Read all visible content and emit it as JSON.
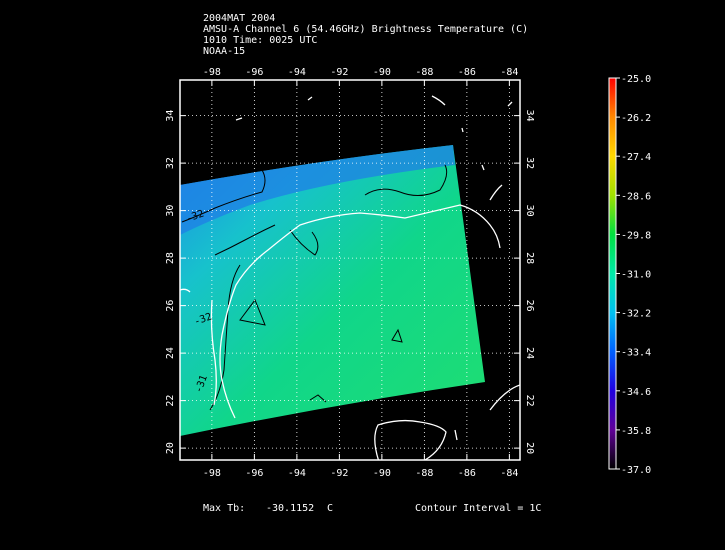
{
  "header": {
    "line1": "2004MAT 2004",
    "line2": "AMSU-A Channel 6 (54.46GHz) Brightness Temperature (C)",
    "line3": "1010 Time: 0025 UTC",
    "line4": "NOAA-15"
  },
  "footer": {
    "max_label": "Max Tb:",
    "max_value": "-30.1152",
    "max_unit": "C",
    "contour": "Contour Interval = 1C"
  },
  "map": {
    "lon_ticks": [
      "-98",
      "-96",
      "-94",
      "-92",
      "-90",
      "-88",
      "-86",
      "-84"
    ],
    "lat_ticks": [
      "20",
      "22",
      "24",
      "26",
      "28",
      "30",
      "32",
      "34"
    ],
    "lon_range": [
      -99.5,
      -83.5
    ],
    "lat_range": [
      19.5,
      35.5
    ],
    "contour_labels": [
      "-32",
      "-32",
      "-31"
    ]
  },
  "colorbar": {
    "labels": [
      "-25.0",
      "-26.2",
      "-27.4",
      "-28.6",
      "-29.8",
      "-31.0",
      "-32.2",
      "-33.4",
      "-34.6",
      "-35.8",
      "-37.0"
    ],
    "colors": [
      "#ff0000",
      "#ff8800",
      "#ffd800",
      "#a0e000",
      "#00e040",
      "#00e8a8",
      "#00c0f0",
      "#0060ff",
      "#2000e0",
      "#600098",
      "#000000"
    ]
  },
  "chart_data": {
    "type": "heatmap",
    "title": "AMSU-A Channel 6 (54.46GHz) Brightness Temperature (C)",
    "xlabel": "",
    "ylabel": "",
    "xlim": [
      -99.5,
      -83.5
    ],
    "ylim": [
      19.5,
      35.5
    ],
    "color_range": [
      -37.0,
      -25.0
    ],
    "max_value": -30.1152,
    "contour_interval": 1
  }
}
